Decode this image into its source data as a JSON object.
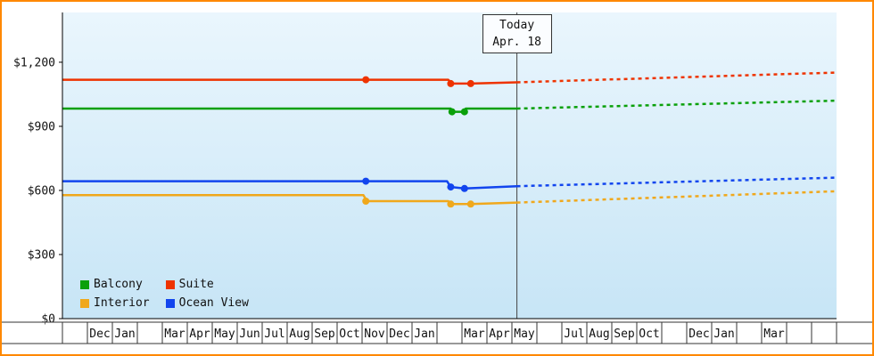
{
  "window": {
    "frame_color": "#ff8800"
  },
  "chart_data": {
    "type": "line",
    "title": "",
    "plot_bg_top": "#eaf6fd",
    "plot_bg_bottom": "#c7e5f6",
    "axis_color": "#000000",
    "today_line_color": "#444444",
    "ylim": [
      0,
      1433
    ],
    "yticks": [
      {
        "value": 0,
        "label": "$0"
      },
      {
        "value": 300,
        "label": "$300"
      },
      {
        "value": 600,
        "label": "$600"
      },
      {
        "value": 900,
        "label": "$900"
      },
      {
        "value": 1200,
        "label": "$1,200"
      }
    ],
    "x_months": [
      "",
      "Dec",
      "Jan",
      "",
      "Mar",
      "Apr",
      "May",
      "Jun",
      "Jul",
      "Aug",
      "Sep",
      "Oct",
      "Nov",
      "Dec",
      "Jan",
      "",
      "Mar",
      "Apr",
      "May",
      "",
      "Jul",
      "Aug",
      "Sep",
      "Oct",
      "",
      "Dec",
      "Jan",
      "",
      "Mar",
      "",
      ""
    ],
    "today_x": 18.2,
    "today_label": {
      "line1": "Today",
      "line2": "Apr. 18"
    },
    "series": [
      {
        "name": "Balcony",
        "color": "#0aa00a",
        "solid": [
          [
            0,
            983
          ],
          [
            15.55,
            983
          ],
          [
            15.65,
            968
          ],
          [
            16.05,
            968
          ],
          [
            16.15,
            983
          ],
          [
            18.2,
            983
          ]
        ],
        "dashed": [
          [
            18.2,
            983
          ],
          [
            31,
            1020
          ]
        ],
        "markers": [
          [
            15.6,
            968
          ],
          [
            16.1,
            968
          ]
        ]
      },
      {
        "name": "Suite",
        "color": "#ee3300",
        "solid": [
          [
            0,
            1118
          ],
          [
            15.45,
            1118
          ],
          [
            15.6,
            1100
          ],
          [
            16.35,
            1100
          ],
          [
            18.2,
            1106
          ]
        ],
        "dashed": [
          [
            18.2,
            1106
          ],
          [
            31,
            1152
          ]
        ],
        "markers": [
          [
            12.15,
            1118
          ],
          [
            15.55,
            1100
          ],
          [
            16.35,
            1100
          ]
        ]
      },
      {
        "name": "Interior",
        "color": "#f0a81c",
        "solid": [
          [
            0,
            578
          ],
          [
            12.05,
            578
          ],
          [
            12.2,
            550
          ],
          [
            15.45,
            550
          ],
          [
            15.6,
            536
          ],
          [
            16.35,
            536
          ],
          [
            18.2,
            543
          ]
        ],
        "dashed": [
          [
            18.2,
            543
          ],
          [
            31,
            596
          ]
        ],
        "markers": [
          [
            12.15,
            550
          ],
          [
            15.55,
            536
          ],
          [
            16.35,
            536
          ]
        ]
      },
      {
        "name": "Ocean View",
        "color": "#1245ee",
        "solid": [
          [
            0,
            643
          ],
          [
            15.4,
            643
          ],
          [
            15.55,
            616
          ],
          [
            16.1,
            609
          ],
          [
            18.2,
            620
          ]
        ],
        "dashed": [
          [
            18.2,
            620
          ],
          [
            31,
            660
          ]
        ],
        "markers": [
          [
            12.15,
            643
          ],
          [
            15.55,
            616
          ],
          [
            16.1,
            609
          ]
        ]
      }
    ]
  }
}
